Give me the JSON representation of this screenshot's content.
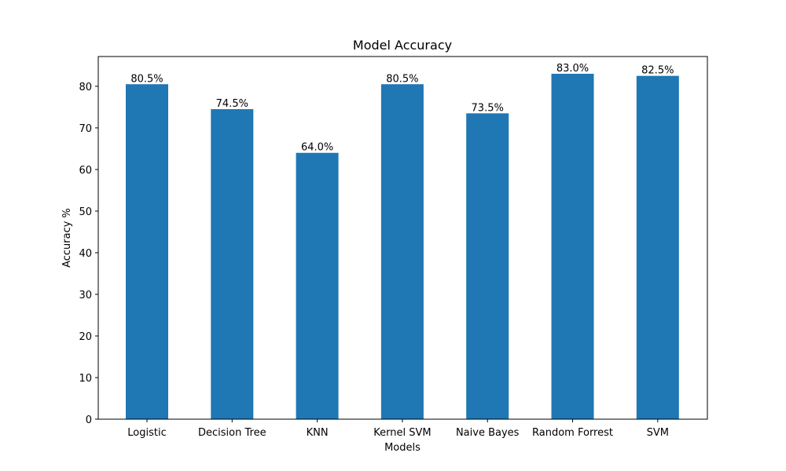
{
  "chart_data": {
    "type": "bar",
    "title": "Model Accuracy",
    "xlabel": "Models",
    "ylabel": "Accuracy %",
    "categories": [
      "Logistic",
      "Decision Tree",
      "KNN",
      "Kernel SVM",
      "Naive Bayes",
      "Random Forrest",
      "SVM"
    ],
    "values": [
      80.5,
      74.5,
      64.0,
      80.5,
      73.5,
      83.0,
      82.5
    ],
    "value_labels": [
      "80.5%",
      "74.5%",
      "64.0%",
      "80.5%",
      "73.5%",
      "83.0%",
      "82.5%"
    ],
    "ylim": [
      0,
      87.15
    ],
    "yticks": [
      0,
      10,
      20,
      30,
      40,
      50,
      60,
      70,
      80
    ],
    "ytick_labels": [
      "0",
      "10",
      "20",
      "30",
      "40",
      "50",
      "60",
      "70",
      "80"
    ],
    "grid": false,
    "bar_color": "#1f77b4"
  }
}
